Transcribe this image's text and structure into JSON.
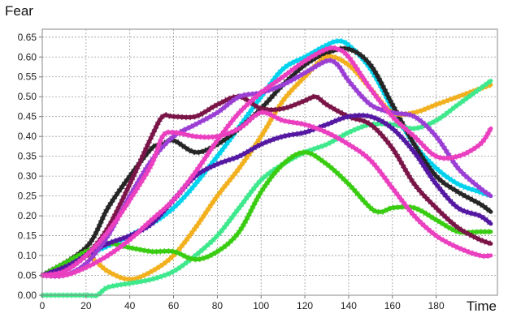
{
  "chart_data": {
    "type": "line",
    "title": "",
    "xlabel": "Time",
    "ylabel": "Fear",
    "xlim": [
      0,
      208
    ],
    "ylim": [
      0,
      0.67
    ],
    "xticks": [
      0,
      20,
      40,
      60,
      80,
      100,
      120,
      140,
      160,
      180
    ],
    "yticks": [
      "0.00",
      "0.05",
      "0.10",
      "0.15",
      "0.20",
      "0.25",
      "0.30",
      "0.35",
      "0.40",
      "0.45",
      "0.50",
      "0.55",
      "0.60",
      "0.65"
    ],
    "grid": true,
    "legend": "none",
    "series": [
      {
        "color": "#00d2ee",
        "x": [
          0,
          20,
          40,
          60,
          80,
          100,
          110,
          120,
          130,
          135,
          140,
          150,
          160,
          170,
          180,
          190,
          200,
          205
        ],
        "y": [
          0.05,
          0.1,
          0.15,
          0.22,
          0.35,
          0.5,
          0.57,
          0.6,
          0.63,
          0.64,
          0.63,
          0.57,
          0.47,
          0.38,
          0.32,
          0.28,
          0.26,
          0.25
        ]
      },
      {
        "color": "#262626",
        "x": [
          0,
          20,
          30,
          40,
          50,
          55,
          60,
          70,
          80,
          90,
          100,
          110,
          120,
          130,
          140,
          150,
          160,
          170,
          180,
          190,
          200,
          205
        ],
        "y": [
          0.05,
          0.12,
          0.22,
          0.3,
          0.37,
          0.38,
          0.39,
          0.36,
          0.38,
          0.42,
          0.47,
          0.53,
          0.58,
          0.61,
          0.62,
          0.58,
          0.48,
          0.38,
          0.3,
          0.26,
          0.23,
          0.21
        ]
      },
      {
        "color": "#f2b01e",
        "x": [
          0,
          10,
          20,
          30,
          40,
          50,
          60,
          70,
          80,
          90,
          100,
          110,
          120,
          130,
          140,
          150,
          160,
          170,
          180,
          190,
          200,
          205
        ],
        "y": [
          0.05,
          0.07,
          0.1,
          0.06,
          0.04,
          0.06,
          0.1,
          0.17,
          0.25,
          0.32,
          0.4,
          0.49,
          0.55,
          0.6,
          0.58,
          0.52,
          0.46,
          0.46,
          0.48,
          0.5,
          0.52,
          0.53
        ]
      },
      {
        "color": "#3ee88c",
        "x": [
          0,
          20,
          25,
          30,
          40,
          50,
          60,
          70,
          80,
          90,
          100,
          110,
          120,
          130,
          140,
          150,
          160,
          170,
          180,
          190,
          200,
          205
        ],
        "y": [
          0.0,
          0.0,
          0.0,
          0.02,
          0.03,
          0.04,
          0.06,
          0.1,
          0.15,
          0.22,
          0.29,
          0.33,
          0.36,
          0.38,
          0.41,
          0.43,
          0.43,
          0.42,
          0.44,
          0.48,
          0.52,
          0.54
        ]
      },
      {
        "color": "#39cc12",
        "x": [
          0,
          10,
          20,
          30,
          40,
          50,
          60,
          70,
          80,
          90,
          100,
          110,
          120,
          130,
          140,
          150,
          155,
          160,
          170,
          180,
          190,
          200,
          205
        ],
        "y": [
          0.05,
          0.08,
          0.11,
          0.13,
          0.12,
          0.11,
          0.11,
          0.09,
          0.11,
          0.16,
          0.26,
          0.33,
          0.36,
          0.33,
          0.28,
          0.22,
          0.21,
          0.22,
          0.22,
          0.19,
          0.16,
          0.16,
          0.16
        ]
      },
      {
        "color": "#7a1548",
        "x": [
          0,
          10,
          20,
          30,
          40,
          50,
          55,
          60,
          70,
          80,
          90,
          100,
          110,
          120,
          125,
          130,
          140,
          150,
          160,
          170,
          180,
          190,
          200,
          205
        ],
        "y": [
          0.05,
          0.07,
          0.1,
          0.17,
          0.28,
          0.4,
          0.45,
          0.45,
          0.45,
          0.48,
          0.5,
          0.47,
          0.47,
          0.49,
          0.5,
          0.48,
          0.45,
          0.43,
          0.37,
          0.28,
          0.22,
          0.17,
          0.14,
          0.13
        ]
      },
      {
        "color": "#5518a2",
        "x": [
          0,
          10,
          20,
          30,
          40,
          50,
          60,
          70,
          80,
          90,
          100,
          110,
          120,
          130,
          140,
          150,
          160,
          170,
          180,
          190,
          200,
          205
        ],
        "y": [
          0.05,
          0.07,
          0.1,
          0.13,
          0.15,
          0.18,
          0.24,
          0.3,
          0.33,
          0.35,
          0.38,
          0.4,
          0.41,
          0.43,
          0.45,
          0.45,
          0.42,
          0.36,
          0.28,
          0.22,
          0.2,
          0.18
        ]
      },
      {
        "color": "#9b3fd4",
        "x": [
          0,
          10,
          20,
          30,
          40,
          50,
          60,
          70,
          80,
          90,
          100,
          110,
          120,
          130,
          135,
          140,
          150,
          160,
          170,
          180,
          190,
          200,
          205
        ],
        "y": [
          0.05,
          0.05,
          0.08,
          0.15,
          0.25,
          0.34,
          0.4,
          0.43,
          0.46,
          0.5,
          0.51,
          0.53,
          0.56,
          0.59,
          0.58,
          0.54,
          0.48,
          0.46,
          0.45,
          0.4,
          0.32,
          0.27,
          0.25
        ]
      },
      {
        "color": "#ea3fbf",
        "x": [
          0,
          10,
          20,
          30,
          40,
          50,
          55,
          60,
          70,
          80,
          90,
          100,
          110,
          120,
          130,
          140,
          150,
          160,
          170,
          180,
          190,
          200,
          205
        ],
        "y": [
          0.05,
          0.06,
          0.1,
          0.16,
          0.24,
          0.33,
          0.4,
          0.41,
          0.4,
          0.4,
          0.42,
          0.46,
          0.44,
          0.43,
          0.41,
          0.38,
          0.34,
          0.27,
          0.2,
          0.15,
          0.12,
          0.1,
          0.1
        ]
      },
      {
        "color": "#ea3fbf",
        "x": [
          0,
          10,
          20,
          30,
          40,
          50,
          60,
          70,
          80,
          90,
          100,
          110,
          120,
          130,
          135,
          140,
          150,
          160,
          170,
          180,
          190,
          200,
          205
        ],
        "y": [
          0.05,
          0.05,
          0.07,
          0.1,
          0.14,
          0.19,
          0.24,
          0.31,
          0.39,
          0.46,
          0.51,
          0.55,
          0.59,
          0.62,
          0.62,
          0.6,
          0.52,
          0.45,
          0.4,
          0.35,
          0.35,
          0.38,
          0.42
        ]
      }
    ]
  }
}
